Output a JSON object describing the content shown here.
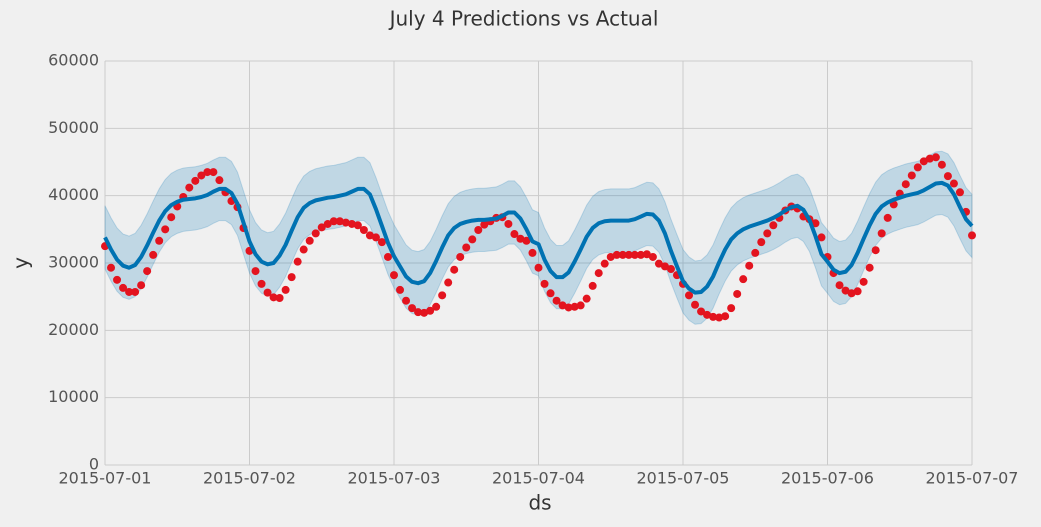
{
  "chart_data": {
    "type": "forecast",
    "title": "July 4 Predictions vs Actual",
    "xlabel": "ds",
    "ylabel": "y",
    "x": [
      "2015-07-01T00:00",
      "2015-07-01T01:00",
      "2015-07-01T02:00",
      "2015-07-01T03:00",
      "2015-07-01T04:00",
      "2015-07-01T05:00",
      "2015-07-01T06:00",
      "2015-07-01T07:00",
      "2015-07-01T08:00",
      "2015-07-01T09:00",
      "2015-07-01T10:00",
      "2015-07-01T11:00",
      "2015-07-01T12:00",
      "2015-07-01T13:00",
      "2015-07-01T14:00",
      "2015-07-01T15:00",
      "2015-07-01T16:00",
      "2015-07-01T17:00",
      "2015-07-01T18:00",
      "2015-07-01T19:00",
      "2015-07-01T20:00",
      "2015-07-01T21:00",
      "2015-07-01T22:00",
      "2015-07-01T23:00",
      "2015-07-02T00:00",
      "2015-07-02T01:00",
      "2015-07-02T02:00",
      "2015-07-02T03:00",
      "2015-07-02T04:00",
      "2015-07-02T05:00",
      "2015-07-02T06:00",
      "2015-07-02T07:00",
      "2015-07-02T08:00",
      "2015-07-02T09:00",
      "2015-07-02T10:00",
      "2015-07-02T11:00",
      "2015-07-02T12:00",
      "2015-07-02T13:00",
      "2015-07-02T14:00",
      "2015-07-02T15:00",
      "2015-07-02T16:00",
      "2015-07-02T17:00",
      "2015-07-02T18:00",
      "2015-07-02T19:00",
      "2015-07-02T20:00",
      "2015-07-02T21:00",
      "2015-07-02T22:00",
      "2015-07-02T23:00",
      "2015-07-03T00:00",
      "2015-07-03T01:00",
      "2015-07-03T02:00",
      "2015-07-03T03:00",
      "2015-07-03T04:00",
      "2015-07-03T05:00",
      "2015-07-03T06:00",
      "2015-07-03T07:00",
      "2015-07-03T08:00",
      "2015-07-03T09:00",
      "2015-07-03T10:00",
      "2015-07-03T11:00",
      "2015-07-03T12:00",
      "2015-07-03T13:00",
      "2015-07-03T14:00",
      "2015-07-03T15:00",
      "2015-07-03T16:00",
      "2015-07-03T17:00",
      "2015-07-03T18:00",
      "2015-07-03T19:00",
      "2015-07-03T20:00",
      "2015-07-03T21:00",
      "2015-07-03T22:00",
      "2015-07-03T23:00",
      "2015-07-04T00:00",
      "2015-07-04T01:00",
      "2015-07-04T02:00",
      "2015-07-04T03:00",
      "2015-07-04T04:00",
      "2015-07-04T05:00",
      "2015-07-04T06:00",
      "2015-07-04T07:00",
      "2015-07-04T08:00",
      "2015-07-04T09:00",
      "2015-07-04T10:00",
      "2015-07-04T11:00",
      "2015-07-04T12:00",
      "2015-07-04T13:00",
      "2015-07-04T14:00",
      "2015-07-04T15:00",
      "2015-07-04T16:00",
      "2015-07-04T17:00",
      "2015-07-04T18:00",
      "2015-07-04T19:00",
      "2015-07-04T20:00",
      "2015-07-04T21:00",
      "2015-07-04T22:00",
      "2015-07-04T23:00",
      "2015-07-05T00:00",
      "2015-07-05T01:00",
      "2015-07-05T02:00",
      "2015-07-05T03:00",
      "2015-07-05T04:00",
      "2015-07-05T05:00",
      "2015-07-05T06:00",
      "2015-07-05T07:00",
      "2015-07-05T08:00",
      "2015-07-05T09:00",
      "2015-07-05T10:00",
      "2015-07-05T11:00",
      "2015-07-05T12:00",
      "2015-07-05T13:00",
      "2015-07-05T14:00",
      "2015-07-05T15:00",
      "2015-07-05T16:00",
      "2015-07-05T17:00",
      "2015-07-05T18:00",
      "2015-07-05T19:00",
      "2015-07-05T20:00",
      "2015-07-05T21:00",
      "2015-07-05T22:00",
      "2015-07-05T23:00",
      "2015-07-06T00:00",
      "2015-07-06T01:00",
      "2015-07-06T02:00",
      "2015-07-06T03:00",
      "2015-07-06T04:00",
      "2015-07-06T05:00",
      "2015-07-06T06:00",
      "2015-07-06T07:00",
      "2015-07-06T08:00",
      "2015-07-06T09:00",
      "2015-07-06T10:00",
      "2015-07-06T11:00",
      "2015-07-06T12:00",
      "2015-07-06T13:00",
      "2015-07-06T14:00",
      "2015-07-06T15:00",
      "2015-07-06T16:00",
      "2015-07-06T17:00",
      "2015-07-06T18:00",
      "2015-07-06T19:00",
      "2015-07-06T20:00",
      "2015-07-06T21:00",
      "2015-07-06T22:00",
      "2015-07-06T23:00",
      "2015-07-07T00:00"
    ],
    "series": [
      {
        "style": "scatter",
        "color": "#e3141f",
        "values": [
          32500,
          29300,
          27500,
          26300,
          25700,
          25700,
          26700,
          28800,
          31200,
          33300,
          35000,
          36800,
          38400,
          39800,
          41200,
          42200,
          43000,
          43500,
          43500,
          42300,
          40500,
          39200,
          38300,
          35200,
          31800,
          28800,
          26900,
          25600,
          24900,
          24800,
          26000,
          27900,
          30200,
          32000,
          33300,
          34400,
          35300,
          35800,
          36200,
          36200,
          36000,
          35800,
          35600,
          34900,
          34100,
          33800,
          33100,
          30900,
          28200,
          26000,
          24400,
          23300,
          22700,
          22600,
          22900,
          23500,
          25200,
          27100,
          29000,
          30900,
          32300,
          33500,
          34900,
          35700,
          36200,
          36700,
          36800,
          35800,
          34300,
          33600,
          33300,
          31500,
          29300,
          26900,
          25500,
          24400,
          23700,
          23400,
          23500,
          23700,
          24700,
          26600,
          28500,
          29900,
          30900,
          31200,
          31200,
          31200,
          31200,
          31200,
          31300,
          30900,
          29900,
          29500,
          29100,
          28200,
          26900,
          25200,
          23800,
          22800,
          22300,
          22000,
          21900,
          22100,
          23300,
          25400,
          27600,
          29600,
          31500,
          33100,
          34400,
          35600,
          36700,
          37800,
          38400,
          38100,
          36900,
          36500,
          35900,
          33800,
          30900,
          28500,
          26700,
          25900,
          25500,
          25800,
          27200,
          29300,
          31900,
          34400,
          36700,
          38700,
          40300,
          41700,
          43000,
          44200,
          45100,
          45500,
          45700,
          44600,
          42900,
          41800,
          40500,
          37600,
          34100
        ]
      },
      {
        "style": "line",
        "color": "#0072b2",
        "values": [
          33800,
          32000,
          30500,
          29600,
          29300,
          29700,
          30900,
          32600,
          34500,
          36300,
          37700,
          38600,
          39100,
          39400,
          39500,
          39600,
          39800,
          40100,
          40600,
          41000,
          41000,
          40400,
          38800,
          36000,
          33200,
          31300,
          30200,
          29800,
          30000,
          31100,
          32700,
          34800,
          36800,
          38200,
          38900,
          39300,
          39500,
          39700,
          39800,
          40000,
          40200,
          40600,
          41000,
          41000,
          40200,
          38000,
          35500,
          33000,
          31000,
          29500,
          28000,
          27200,
          27000,
          27300,
          28500,
          30300,
          32300,
          34100,
          35200,
          35800,
          36100,
          36300,
          36400,
          36400,
          36500,
          36600,
          37000,
          37500,
          37500,
          36600,
          35000,
          33200,
          32800,
          30500,
          28800,
          27900,
          27900,
          28600,
          30200,
          32000,
          33900,
          35200,
          35900,
          36200,
          36300,
          36300,
          36300,
          36300,
          36500,
          36900,
          37300,
          37200,
          36300,
          34400,
          31800,
          29500,
          27300,
          26200,
          25600,
          25700,
          26500,
          28000,
          30100,
          32000,
          33500,
          34400,
          35000,
          35400,
          35700,
          36000,
          36300,
          36700,
          37200,
          37800,
          38300,
          38500,
          37900,
          36400,
          34000,
          31300,
          30200,
          29000,
          28500,
          28700,
          29700,
          31500,
          33600,
          35600,
          37300,
          38400,
          39000,
          39400,
          39700,
          40000,
          40200,
          40400,
          40800,
          41300,
          41800,
          41900,
          41500,
          40200,
          38300,
          36500,
          35500
        ]
      }
    ],
    "band": {
      "color": "#0072b2",
      "lower": [
        29100,
        27300,
        25800,
        24900,
        24600,
        25000,
        26200,
        27900,
        29800,
        31600,
        33000,
        33900,
        34400,
        34700,
        34800,
        34900,
        35100,
        35400,
        35900,
        36300,
        36300,
        35700,
        34100,
        31300,
        28500,
        26600,
        25500,
        25100,
        25300,
        26400,
        28000,
        30100,
        32100,
        33500,
        34200,
        34600,
        34800,
        35000,
        35100,
        35300,
        35500,
        35900,
        36300,
        36300,
        35500,
        33300,
        30800,
        28300,
        26300,
        24800,
        23300,
        22500,
        22300,
        22600,
        23800,
        25600,
        27600,
        29400,
        30500,
        31100,
        31400,
        31600,
        31700,
        31700,
        31800,
        31900,
        32300,
        32800,
        32800,
        31900,
        30300,
        28500,
        28100,
        25800,
        24100,
        23200,
        23200,
        23900,
        25500,
        27300,
        29200,
        30500,
        31200,
        31500,
        31600,
        31600,
        31600,
        31600,
        31800,
        32200,
        32600,
        32500,
        31600,
        29700,
        27100,
        24800,
        22600,
        21500,
        20900,
        21000,
        21800,
        23300,
        25400,
        27300,
        28800,
        29700,
        30300,
        30700,
        31000,
        31300,
        31600,
        32000,
        32500,
        33100,
        33600,
        33800,
        33200,
        31700,
        29300,
        26600,
        25500,
        24300,
        23800,
        24000,
        25000,
        26800,
        28900,
        30900,
        32600,
        33700,
        34300,
        34700,
        35000,
        35300,
        35500,
        35700,
        36100,
        36600,
        37100,
        37200,
        36800,
        35500,
        33600,
        31800,
        30800
      ],
      "upper": [
        38500,
        36700,
        35200,
        34300,
        34000,
        34400,
        35600,
        37300,
        39200,
        41000,
        42400,
        43300,
        43800,
        44100,
        44200,
        44300,
        44500,
        44800,
        45300,
        45700,
        45700,
        45100,
        43500,
        40700,
        37900,
        36000,
        34900,
        34500,
        34700,
        35800,
        37400,
        39500,
        41500,
        42900,
        43600,
        44000,
        44200,
        44400,
        44500,
        44700,
        44900,
        45300,
        45700,
        45700,
        44900,
        42700,
        40200,
        37700,
        35700,
        34200,
        32700,
        31900,
        31700,
        32000,
        33200,
        35000,
        37000,
        38800,
        39900,
        40500,
        40800,
        41000,
        41100,
        41100,
        41200,
        41300,
        41700,
        42200,
        42200,
        41300,
        39700,
        37900,
        37500,
        35200,
        33500,
        32600,
        32600,
        33300,
        34900,
        36700,
        38600,
        39900,
        40600,
        40900,
        41000,
        41000,
        41000,
        41000,
        41200,
        41600,
        42000,
        41900,
        41000,
        39100,
        36500,
        34200,
        32000,
        30900,
        30300,
        30400,
        31200,
        32700,
        34800,
        36700,
        38200,
        39100,
        39700,
        40100,
        40400,
        40700,
        41000,
        41400,
        41900,
        42500,
        43000,
        43200,
        42600,
        41100,
        38700,
        36000,
        34900,
        33700,
        33200,
        33400,
        34400,
        36200,
        38300,
        40300,
        42000,
        43100,
        43700,
        44100,
        44400,
        44700,
        44900,
        45100,
        45500,
        46000,
        46500,
        46600,
        46200,
        44900,
        43000,
        41200,
        40200
      ]
    },
    "xlim": [
      "2015-07-01",
      "2015-07-07"
    ],
    "xticks": [
      "2015-07-01",
      "2015-07-02",
      "2015-07-03",
      "2015-07-04",
      "2015-07-05",
      "2015-07-06",
      "2015-07-07"
    ],
    "ylim": [
      0,
      60000
    ],
    "yticks": [
      0,
      10000,
      20000,
      30000,
      40000,
      50000,
      60000
    ],
    "grid": true
  }
}
